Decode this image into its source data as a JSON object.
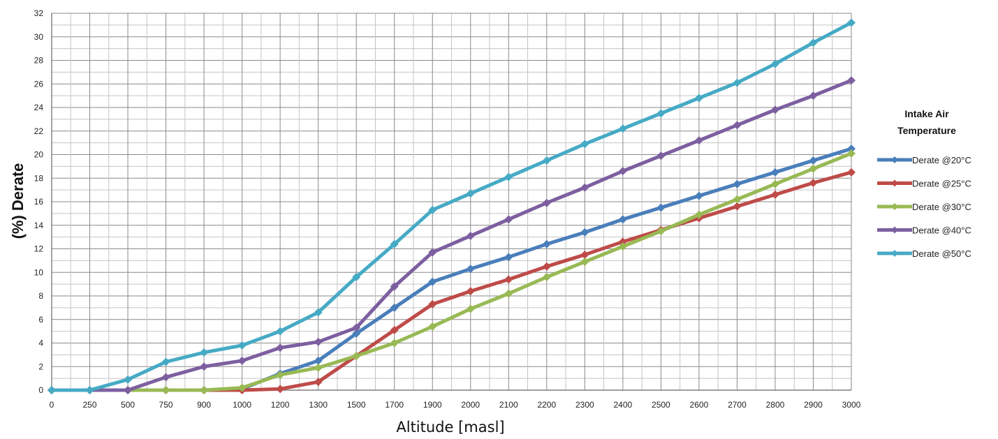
{
  "chart_data": {
    "type": "line",
    "title": "",
    "xlabel": "Altitude [masl]",
    "ylabel": "(%) Derate",
    "ylim": [
      0,
      32
    ],
    "yticks": [
      0,
      2,
      4,
      6,
      8,
      10,
      12,
      14,
      16,
      18,
      20,
      22,
      24,
      26,
      28,
      30,
      32
    ],
    "grid": true,
    "categories": [
      "0",
      "250",
      "500",
      "750",
      "900",
      "1000",
      "1200",
      "1300",
      "1500",
      "1700",
      "1900",
      "2000",
      "2100",
      "2200",
      "2300",
      "2400",
      "2500",
      "2600",
      "2700",
      "2800",
      "2900",
      "3000"
    ],
    "legend": {
      "title_line1": "Intake Air",
      "title_line2": "Temperature",
      "position": "right"
    },
    "series": [
      {
        "name": "Derate @20°C",
        "color": "#4a7ebb",
        "values": [
          0,
          0,
          0,
          0,
          0,
          0.1,
          1.4,
          2.5,
          4.8,
          7.0,
          9.2,
          10.3,
          11.3,
          12.4,
          13.4,
          14.5,
          15.5,
          16.5,
          17.5,
          18.5,
          19.5,
          20.5
        ]
      },
      {
        "name": "Derate @25°C",
        "color": "#be4b48",
        "values": [
          0,
          0,
          0,
          0,
          0,
          0,
          0.1,
          0.7,
          2.9,
          5.1,
          7.3,
          8.4,
          9.4,
          10.5,
          11.5,
          12.6,
          13.6,
          14.6,
          15.6,
          16.6,
          17.6,
          18.5
        ]
      },
      {
        "name": "Derate @30°C",
        "color": "#98b954",
        "values": [
          0,
          0,
          0,
          0,
          0,
          0.2,
          1.3,
          1.9,
          2.9,
          4.0,
          5.4,
          6.9,
          8.2,
          9.6,
          10.9,
          12.2,
          13.5,
          14.9,
          16.2,
          17.5,
          18.8,
          20.1
        ]
      },
      {
        "name": "Derate @40°C",
        "color": "#7d5fa0",
        "values": [
          0,
          0,
          0,
          1.1,
          2.0,
          2.5,
          3.6,
          4.1,
          5.3,
          8.8,
          11.7,
          13.1,
          14.5,
          15.9,
          17.2,
          18.6,
          19.9,
          21.2,
          22.5,
          23.8,
          25.0,
          26.3
        ]
      },
      {
        "name": "Derate @50°C",
        "color": "#46aac5",
        "values": [
          0,
          0,
          0.9,
          2.4,
          3.2,
          3.8,
          5.0,
          6.6,
          9.6,
          12.4,
          15.3,
          16.7,
          18.1,
          19.5,
          20.9,
          22.2,
          23.5,
          24.8,
          26.1,
          27.7,
          29.5,
          31.2
        ]
      }
    ]
  }
}
